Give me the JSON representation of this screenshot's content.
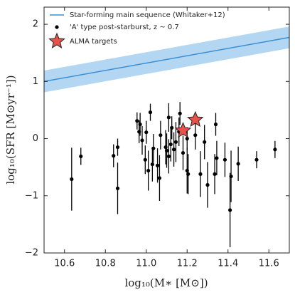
{
  "chart_data": {
    "type": "scatter",
    "xlabel": "log₁₀(M∗ [M⊙])",
    "ylabel": "log₁₀(SFR [M⊙yr⁻¹])",
    "xlim": [
      10.5,
      11.7
    ],
    "ylim": [
      -2,
      2.3
    ],
    "xticks": [
      10.6,
      10.8,
      {
        "value": 11.0,
        "label": "11.0"
      },
      11.2,
      11.4,
      11.6
    ],
    "yticks": [
      {
        "value": -2,
        "label": "−2"
      },
      {
        "value": -1,
        "label": "−1"
      },
      0,
      1,
      2
    ],
    "legend": "upper left",
    "series": [
      {
        "name": "Star-forming main sequence (Whitaker+12)",
        "type": "line",
        "color": "#3a8fd4",
        "band_color": "#b3d6f2",
        "x": [
          10.5,
          11.7
        ],
        "values": [
          1.0,
          1.77
        ],
        "lower": [
          0.81,
          1.58
        ],
        "upper": [
          1.19,
          1.96
        ]
      },
      {
        "name": "'A' type post-starburst, z ~ 0.7",
        "type": "errorbar",
        "color": "#000000",
        "x": [
          10.635,
          10.68,
          10.84,
          10.86,
          10.86,
          10.955,
          10.965,
          10.97,
          10.98,
          10.995,
          11.0,
          11.01,
          11.02,
          11.035,
          11.03,
          11.055,
          11.07,
          11.065,
          11.095,
          11.1,
          11.11,
          11.11,
          11.12,
          11.125,
          11.135,
          11.145,
          11.16,
          11.165,
          11.18,
          11.2,
          11.2,
          11.205,
          11.24,
          11.265,
          11.285,
          11.3,
          11.335,
          11.34,
          11.345,
          11.385,
          11.41,
          11.415,
          11.45,
          11.54,
          11.63
        ],
        "values": [
          -0.71,
          -0.31,
          -0.3,
          -0.15,
          -0.87,
          0.31,
          0.12,
          0.25,
          -0.03,
          -0.37,
          0.11,
          -0.56,
          0.46,
          -0.17,
          -0.45,
          -0.47,
          0.06,
          -0.69,
          -0.15,
          -0.21,
          0.37,
          -0.31,
          -0.1,
          0.19,
          -0.19,
          -0.06,
          0.12,
          0.44,
          -0.25,
          -0.56,
          0.0,
          -0.62,
          0.06,
          -0.62,
          -0.06,
          -0.81,
          -0.62,
          0.25,
          -0.34,
          -0.37,
          -1.25,
          -0.66,
          -0.44,
          -0.37,
          -0.19
        ],
        "errors": [
          0.55,
          0.15,
          0.2,
          0.15,
          0.45,
          0.15,
          0.2,
          0.2,
          0.25,
          0.25,
          0.2,
          0.35,
          0.15,
          0.25,
          0.3,
          0.3,
          0.25,
          0.4,
          0.3,
          0.3,
          0.25,
          0.3,
          0.3,
          0.2,
          0.3,
          0.35,
          0.25,
          0.2,
          0.3,
          0.4,
          0.2,
          0.35,
          0.25,
          0.4,
          0.3,
          0.4,
          0.35,
          0.2,
          0.3,
          0.3,
          0.65,
          0.45,
          0.3,
          0.15,
          0.15
        ]
      },
      {
        "name": "ALMA targets",
        "type": "star",
        "color": "#e8524a",
        "x": [
          11.18,
          11.24
        ],
        "values": [
          0.14,
          0.33
        ]
      }
    ]
  }
}
